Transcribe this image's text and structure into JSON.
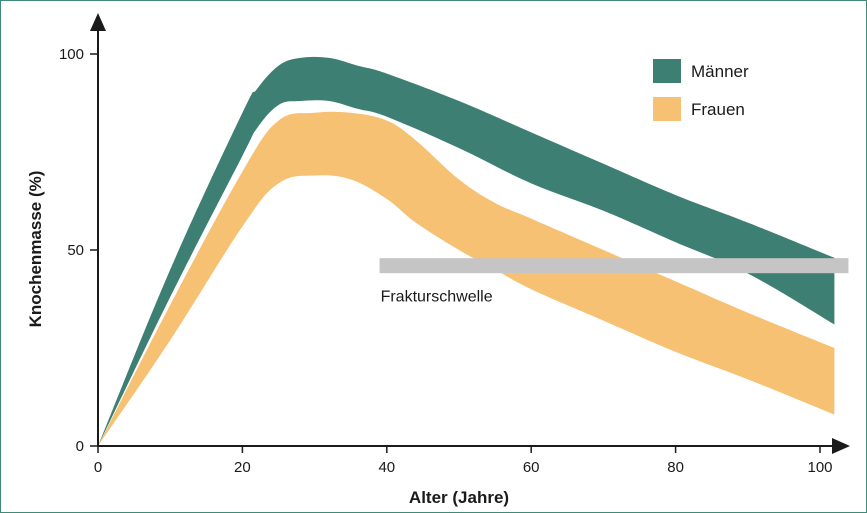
{
  "chart_data": {
    "type": "area",
    "title": "",
    "xlabel": "Alter (Jahre)",
    "ylabel": "Knochenmasse (%)",
    "xlim": [
      0,
      102
    ],
    "ylim": [
      0,
      100
    ],
    "xticks": [
      0,
      20,
      40,
      60,
      80,
      100
    ],
    "yticks": [
      0,
      50,
      100
    ],
    "grid": false,
    "legend": "top-right",
    "series": [
      {
        "name": "Männer",
        "color": "#3d7f72",
        "x": [
          0,
          10,
          20,
          22,
          25,
          28,
          32,
          36,
          40,
          50,
          60,
          70,
          80,
          90,
          102
        ],
        "upper": [
          0,
          45,
          85,
          91,
          97,
          99,
          99,
          97,
          95,
          88,
          80,
          72,
          64,
          57,
          48
        ],
        "lower": [
          0,
          38,
          74,
          81,
          87,
          88,
          88,
          86,
          84,
          76,
          67,
          60,
          52,
          44,
          31
        ]
      },
      {
        "name": "Frauen",
        "color": "#f7c174",
        "x": [
          0,
          10,
          20,
          25,
          30,
          35,
          40,
          44,
          50,
          55,
          60,
          70,
          80,
          90,
          102
        ],
        "upper": [
          0,
          36,
          70,
          83,
          85,
          85,
          83,
          78,
          68,
          62,
          58,
          50,
          42,
          34,
          25
        ],
        "lower": [
          0,
          27,
          56,
          67,
          69,
          68,
          63,
          57,
          50,
          45,
          40,
          32,
          24,
          17,
          8
        ]
      }
    ],
    "threshold": {
      "label": "Frakturschwelle",
      "y": 46,
      "x_start": 39,
      "x_end": 102,
      "color": "#c5c5c5"
    }
  }
}
